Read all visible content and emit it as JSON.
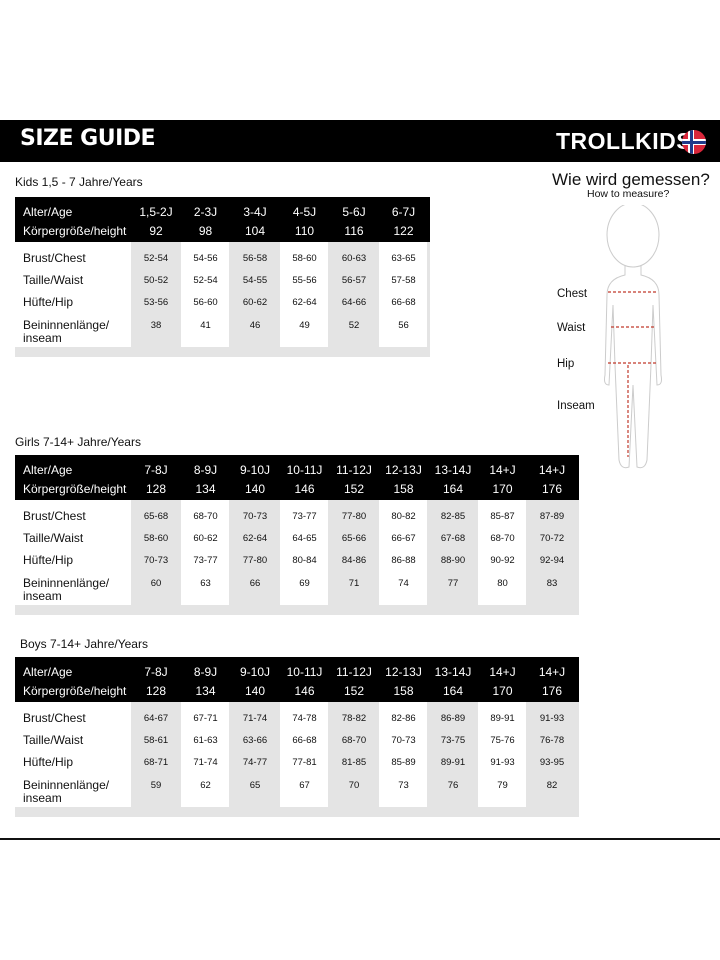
{
  "header": {
    "title": "SIZE GUIDE",
    "logo": "TROLLKIDS",
    "flag_icon": "norway-flag"
  },
  "row_labels": {
    "age": "Alter/Age",
    "height": "Körpergröße/height",
    "chest": "Brust/Chest",
    "waist": "Taille/Waist",
    "hip": "Hüfte/Hip",
    "inseam_1": "Beininnenlänge/",
    "inseam_2": "inseam"
  },
  "tables": [
    {
      "title": "Kids 1,5 - 7 Jahre/Years",
      "ages": [
        "1,5-2J",
        "2-3J",
        "3-4J",
        "4-5J",
        "5-6J",
        "6-7J"
      ],
      "heights": [
        "92",
        "98",
        "104",
        "110",
        "116",
        "122"
      ],
      "chest": [
        "52-54",
        "54-56",
        "56-58",
        "58-60",
        "60-63",
        "63-65"
      ],
      "waist": [
        "50-52",
        "52-54",
        "54-55",
        "55-56",
        "56-57",
        "57-58"
      ],
      "hip": [
        "53-56",
        "56-60",
        "60-62",
        "62-64",
        "64-66",
        "66-68"
      ],
      "inseam": [
        "38",
        "41",
        "46",
        "49",
        "52",
        "56"
      ]
    },
    {
      "title": "Girls 7-14+ Jahre/Years",
      "ages": [
        "7-8J",
        "8-9J",
        "9-10J",
        "10-11J",
        "11-12J",
        "12-13J",
        "13-14J",
        "14+J",
        "14+J"
      ],
      "heights": [
        "128",
        "134",
        "140",
        "146",
        "152",
        "158",
        "164",
        "170",
        "176"
      ],
      "chest": [
        "65-68",
        "68-70",
        "70-73",
        "73-77",
        "77-80",
        "80-82",
        "82-85",
        "85-87",
        "87-89"
      ],
      "waist": [
        "58-60",
        "60-62",
        "62-64",
        "64-65",
        "65-66",
        "66-67",
        "67-68",
        "68-70",
        "70-72"
      ],
      "hip": [
        "70-73",
        "73-77",
        "77-80",
        "80-84",
        "84-86",
        "86-88",
        "88-90",
        "90-92",
        "92-94"
      ],
      "inseam": [
        "60",
        "63",
        "66",
        "69",
        "71",
        "74",
        "77",
        "80",
        "83"
      ]
    },
    {
      "title": "Boys 7-14+ Jahre/Years",
      "ages": [
        "7-8J",
        "8-9J",
        "9-10J",
        "10-11J",
        "11-12J",
        "12-13J",
        "13-14J",
        "14+J",
        "14+J"
      ],
      "heights": [
        "128",
        "134",
        "140",
        "146",
        "152",
        "158",
        "164",
        "170",
        "176"
      ],
      "chest": [
        "64-67",
        "67-71",
        "71-74",
        "74-78",
        "78-82",
        "82-86",
        "86-89",
        "89-91",
        "91-93"
      ],
      "waist": [
        "58-61",
        "61-63",
        "63-66",
        "66-68",
        "68-70",
        "70-73",
        "73-75",
        "75-76",
        "76-78"
      ],
      "hip": [
        "68-71",
        "71-74",
        "74-77",
        "77-81",
        "81-85",
        "85-89",
        "89-91",
        "91-93",
        "93-95"
      ],
      "inseam": [
        "59",
        "62",
        "65",
        "67",
        "70",
        "73",
        "76",
        "79",
        "82"
      ]
    }
  ],
  "measure": {
    "title": "Wie wird gemessen?",
    "subtitle": "How to measure?",
    "chest": "Chest",
    "waist": "Waist",
    "hip": "Hip",
    "inseam": "Inseam",
    "line_color": "#c0392b"
  }
}
